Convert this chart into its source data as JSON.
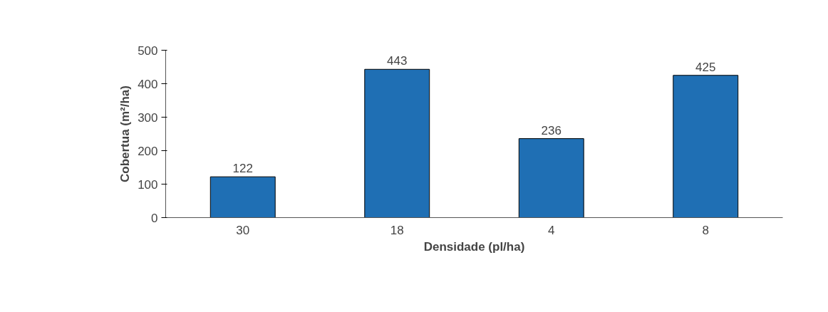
{
  "chart_data": {
    "type": "bar",
    "xlabel": "Densidade (pl/ha)",
    "ylabel": "Cobertua (m²/ha)",
    "categories": [
      "30",
      "18",
      "4",
      "8"
    ],
    "values": [
      122,
      443,
      236,
      425
    ],
    "color": "#1f6fb4",
    "ylim": [
      0,
      500
    ],
    "yticks": [
      0,
      100,
      200,
      300,
      400,
      500
    ],
    "data_labels": true
  }
}
